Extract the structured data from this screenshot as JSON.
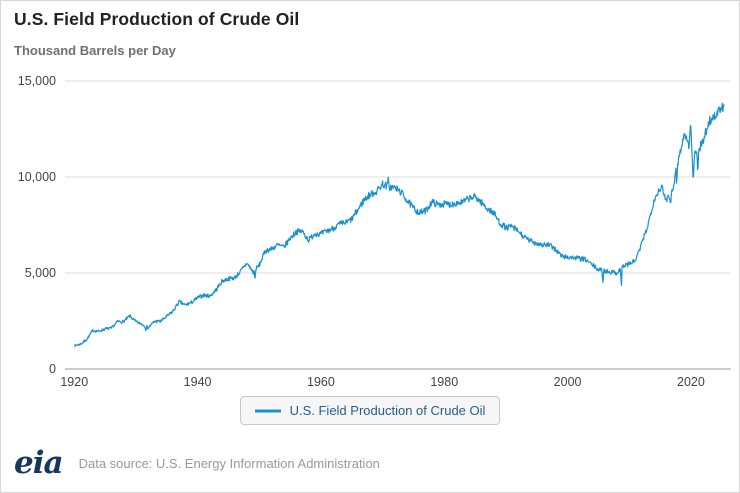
{
  "title": "U.S. Field Production of Crude Oil",
  "subtitle": "Thousand Barrels per Day",
  "legend": {
    "label": "U.S. Field Production of Crude Oil"
  },
  "footer": {
    "logo": "eia",
    "source": "Data source: U.S. Energy Information Administration"
  },
  "colors": {
    "line": "#1a91cd",
    "grid": "#dcdcdc",
    "axis": "#999999",
    "tick": "#444444",
    "title": "#222222",
    "subtitle": "#707070",
    "legend_text": "#235e8a",
    "legend_bg": "#f6f6f6",
    "legend_border": "#c9c9c9",
    "logo": "#15395e",
    "source": "#999999"
  },
  "chart_data": {
    "type": "line",
    "title": "U.S. Field Production of Crude Oil",
    "ylabel": "Thousand Barrels per Day",
    "xlabel": "",
    "frequency": "monthly",
    "grid": "horizontal",
    "legend_position": "bottom",
    "xlim": [
      1918.5,
      2026.5
    ],
    "ylim": [
      0,
      15000
    ],
    "x_ticks": [
      1920,
      1940,
      1960,
      1980,
      2000,
      2020
    ],
    "y_ticks": [
      0,
      5000,
      10000,
      15000
    ],
    "y_tick_labels": [
      "0",
      "5,000",
      "10,000",
      "15,000"
    ],
    "series": [
      {
        "name": "U.S. Field Production of Crude Oil",
        "color": "#1a91cd",
        "start_year": 1920,
        "end_x": 2025.45,
        "annual_values": [
          1214,
          1294,
          1527,
          2007,
          1958,
          2092,
          2113,
          2468,
          2463,
          2760,
          2460,
          2332,
          2145,
          2481,
          2488,
          2730,
          3001,
          3501,
          3329,
          3463,
          3707,
          3847,
          3799,
          4125,
          4584,
          4695,
          4751,
          5088,
          5520,
          5046,
          5407,
          6158,
          6256,
          6458,
          6342,
          6807,
          7151,
          7170,
          6710,
          7054,
          7035,
          7183,
          7332,
          7542,
          7614,
          7804,
          8295,
          8810,
          9096,
          9238,
          9637,
          9463,
          9441,
          9208,
          8774,
          8375,
          8132,
          8245,
          8707,
          8552,
          8597,
          8572,
          8649,
          8688,
          8879,
          8971,
          8680,
          8349,
          8140,
          7613,
          7355,
          7417,
          7171,
          6847,
          6662,
          6560,
          6465,
          6452,
          6252,
          5881,
          5822,
          5801,
          5746,
          5681,
          5419,
          5178,
          5102,
          5064,
          5000,
          5353,
          5482,
          5645,
          6497,
          7468,
          8789,
          9431,
          8831,
          9352,
          10964,
          12289,
          11283,
          11254,
          11911,
          12927,
          13209,
          13600
        ]
      }
    ],
    "notable_monthly_extremes": [
      {
        "x": 1931.6,
        "y": 1980,
        "w": 0.15
      },
      {
        "x": 1949.3,
        "y": 4560,
        "w": 0.12
      },
      {
        "x": 1970.9,
        "y": 10050,
        "w": 0.12
      },
      {
        "x": 2005.72,
        "y": 4260,
        "w": 0.1
      },
      {
        "x": 2008.72,
        "y": 3980,
        "w": 0.1
      },
      {
        "x": 2015.3,
        "y": 9620,
        "w": 0.2
      },
      {
        "x": 2016.7,
        "y": 8560,
        "w": 0.2
      },
      {
        "x": 2017.7,
        "y": 9250,
        "w": 0.08
      },
      {
        "x": 2019.95,
        "y": 12900,
        "w": 0.25
      },
      {
        "x": 2020.37,
        "y": 9720,
        "w": 0.22
      },
      {
        "x": 2021.12,
        "y": 9870,
        "w": 0.1
      },
      {
        "x": 2025.4,
        "y": 13750,
        "w": 0.2
      }
    ]
  }
}
